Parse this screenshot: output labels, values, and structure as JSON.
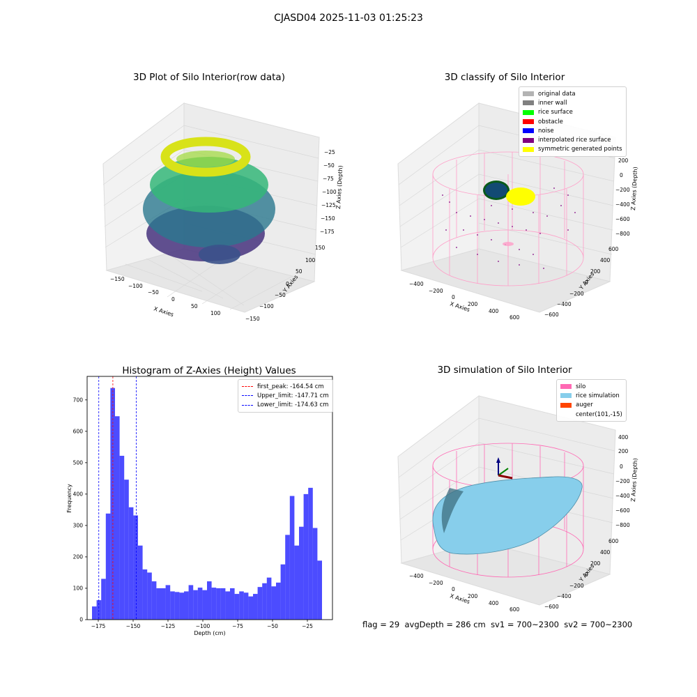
{
  "figure": {
    "title": "CJASD04 2025-11-03 01:25:23"
  },
  "panels": {
    "raw3d": {
      "title": "3D Plot of Silo Interior(row data)",
      "xlabel": "X Axies",
      "ylabel": "Y Axies",
      "zlabel": "Z Axies (Depth)",
      "xticks": [
        "−150",
        "−100",
        "−50",
        "0",
        "50",
        "100"
      ],
      "yticks": [
        "150",
        "100",
        "50",
        "0",
        "−50",
        "−100",
        "−150"
      ],
      "zticks": [
        "−25",
        "−50",
        "−75",
        "−100",
        "−125",
        "−150",
        "−175"
      ]
    },
    "classify3d": {
      "title": "3D classify of Silo Interior",
      "xlabel": "X Axies",
      "ylabel": "Y Axies",
      "zlabel": "Z Axies (Depth)",
      "xticks": [
        "−400",
        "−200",
        "0",
        "200",
        "400",
        "600"
      ],
      "yticks": [
        "600",
        "400",
        "200",
        "0",
        "−200",
        "−400",
        "−600"
      ],
      "zticks": [
        "200",
        "0",
        "−200",
        "−400",
        "−600",
        "−800"
      ],
      "legend": [
        {
          "label": "original data",
          "color": "#b3b3b3"
        },
        {
          "label": "inner wall",
          "color": "#808080"
        },
        {
          "label": "rice surface",
          "color": "#00ff00"
        },
        {
          "label": "obstacle",
          "color": "#ff0000"
        },
        {
          "label": "noise",
          "color": "#0000ff"
        },
        {
          "label": "interpolated rice surface",
          "color": "#800080"
        },
        {
          "label": "symmetric generated points",
          "color": "#ffff00"
        }
      ]
    },
    "simulation3d": {
      "title": "3D simulation of Silo Interior",
      "xlabel": "X Axies",
      "ylabel": "Y Axies",
      "zlabel": "Z Axies (Depth)",
      "xticks": [
        "−400",
        "−200",
        "0",
        "200",
        "400",
        "600"
      ],
      "yticks": [
        "600",
        "400",
        "200",
        "0",
        "−200",
        "−400",
        "−600"
      ],
      "zticks": [
        "400",
        "200",
        "0",
        "−200",
        "−400",
        "−600",
        "−800"
      ],
      "legend": [
        {
          "label": "silo",
          "color": "#ff69b4"
        },
        {
          "label": "rice simulation",
          "color": "#87ceeb"
        },
        {
          "label": "auger",
          "color": "#ff4500"
        },
        {
          "label": "center(101,-15)",
          "color": ""
        }
      ]
    }
  },
  "footer": {
    "flag": "flag = 29",
    "avg_depth": "avgDepth = 286 cm",
    "sv1": "sv1 = 700~2300",
    "sv2": "sv2 = 700~2300"
  },
  "chart_data": {
    "type": "bar",
    "title": "Histogram of Z-Axies (Height) Values",
    "xlabel": "Depth (cm)",
    "ylabel": "Frequency",
    "xlim": [
      -183,
      -7
    ],
    "ylim": [
      0,
      775
    ],
    "bar_color": "#0000ff",
    "bin_start": -179.5,
    "bin_width": 3.3,
    "values": [
      42,
      62,
      130,
      338,
      738,
      648,
      522,
      446,
      358,
      332,
      236,
      160,
      150,
      122,
      100,
      100,
      110,
      90,
      88,
      86,
      90,
      110,
      94,
      102,
      94,
      122,
      102,
      100,
      100,
      90,
      100,
      82,
      90,
      86,
      74,
      82,
      104,
      116,
      134,
      106,
      118,
      176,
      270,
      394,
      236,
      296,
      400,
      420,
      292,
      188
    ],
    "xticks": [
      -175,
      -150,
      -125,
      -100,
      -75,
      -50,
      -25
    ],
    "xtick_labels": [
      "−175",
      "−150",
      "−125",
      "−100",
      "−75",
      "−50",
      "−25"
    ],
    "yticks": [
      0,
      100,
      200,
      300,
      400,
      500,
      600,
      700
    ],
    "ytick_labels": [
      "0",
      "100",
      "200",
      "300",
      "400",
      "500",
      "600",
      "700"
    ],
    "vlines": [
      {
        "label": "first_peak: -164.54 cm",
        "x": -164.54,
        "color": "#ff0000"
      },
      {
        "label": "Upper_limit: -147.71 cm",
        "x": -147.71,
        "color": "#0000ff"
      },
      {
        "label": "Lower_limit: -174.63 cm",
        "x": -174.63,
        "color": "#0000ff"
      }
    ],
    "legend_position": "upper right"
  }
}
